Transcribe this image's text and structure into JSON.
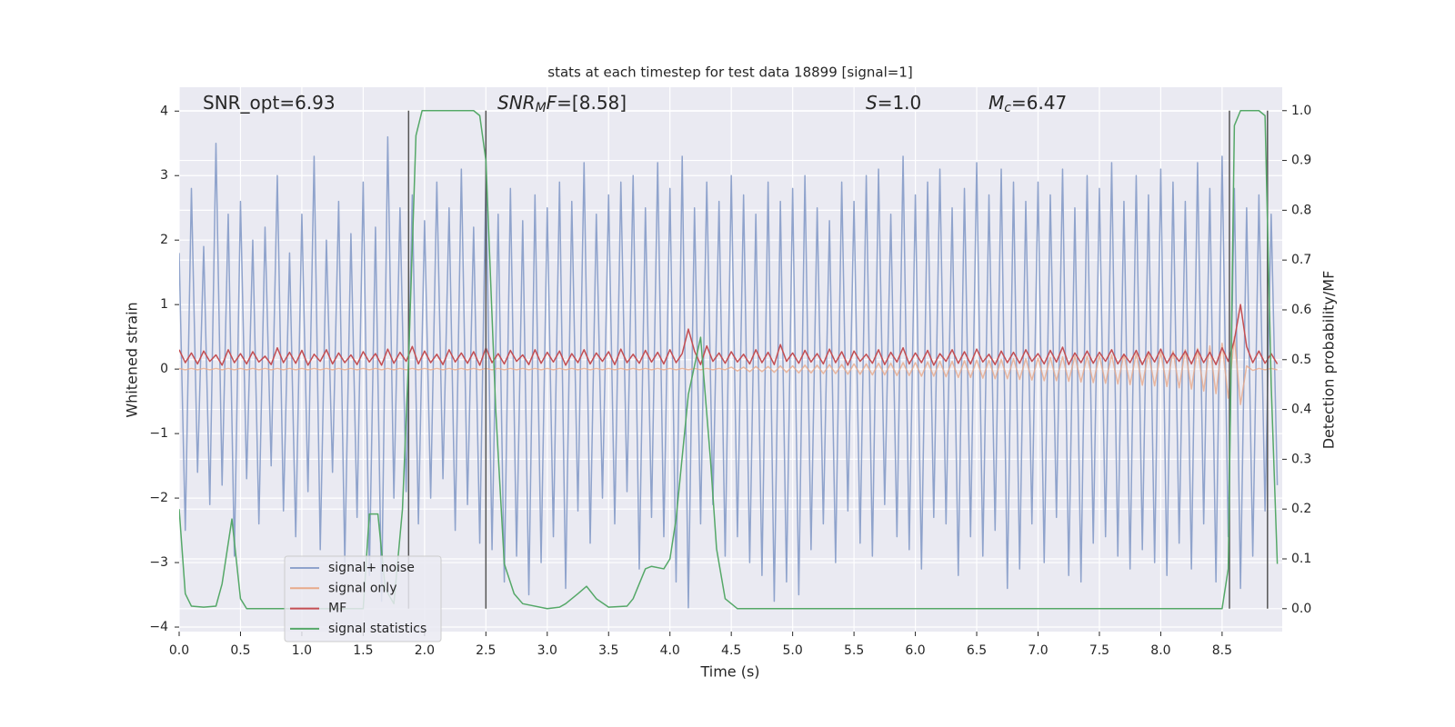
{
  "chart_data": {
    "type": "line",
    "title": "stats at each timestep for test data 18899 [signal=1]",
    "xlabel": "Time (s)",
    "ylabel": "Whitened strain",
    "y2label": "Detection probability/MF",
    "annotations": [
      {
        "parts": [
          {
            "text": "SNR_opt=6.93"
          }
        ]
      },
      {
        "parts": [
          {
            "text": "SNR",
            "italic": true
          },
          {
            "text": "M",
            "italic": true,
            "sub": true
          },
          {
            "text": "F",
            "italic": true
          },
          {
            "text": "=[8.58]"
          }
        ]
      },
      {
        "parts": [
          {
            "text": "S",
            "italic": true
          },
          {
            "text": "=1.0"
          }
        ]
      },
      {
        "parts": [
          {
            "text": "M",
            "italic": true
          },
          {
            "text": "c",
            "italic": true,
            "sub": true
          },
          {
            "text": "=6.47"
          }
        ]
      }
    ],
    "xlim": [
      0,
      8.99
    ],
    "ylim": [
      -4.07,
      4.37
    ],
    "y2lim": [
      -0.046,
      1.047
    ],
    "xticks": [
      {
        "value": 0,
        "label": "0.0"
      },
      {
        "value": 0.5,
        "label": "0.5"
      },
      {
        "value": 1,
        "label": "1.0"
      },
      {
        "value": 1.5,
        "label": "1.5"
      },
      {
        "value": 2,
        "label": "2.0"
      },
      {
        "value": 2.5,
        "label": "2.5"
      },
      {
        "value": 3,
        "label": "3.0"
      },
      {
        "value": 3.5,
        "label": "3.5"
      },
      {
        "value": 4,
        "label": "4.0"
      },
      {
        "value": 4.5,
        "label": "4.5"
      },
      {
        "value": 5,
        "label": "5.0"
      },
      {
        "value": 5.5,
        "label": "5.5"
      },
      {
        "value": 6,
        "label": "6.0"
      },
      {
        "value": 6.5,
        "label": "6.5"
      },
      {
        "value": 7,
        "label": "7.0"
      },
      {
        "value": 7.5,
        "label": "7.5"
      },
      {
        "value": 8,
        "label": "8.0"
      },
      {
        "value": 8.5,
        "label": "8.5"
      }
    ],
    "yticks": [
      {
        "value": -4,
        "label": "−4"
      },
      {
        "value": -3,
        "label": "−3"
      },
      {
        "value": -2,
        "label": "−2"
      },
      {
        "value": -1,
        "label": "−1"
      },
      0,
      1,
      2,
      3,
      4
    ],
    "y2ticks": [
      {
        "value": 0,
        "label": "0.0"
      },
      {
        "value": 0.1,
        "label": "0.1"
      },
      {
        "value": 0.2,
        "label": "0.2"
      },
      {
        "value": 0.3,
        "label": "0.3"
      },
      {
        "value": 0.4,
        "label": "0.4"
      },
      {
        "value": 0.5,
        "label": "0.5"
      },
      {
        "value": 0.6,
        "label": "0.6"
      },
      {
        "value": 0.7,
        "label": "0.7"
      },
      {
        "value": 0.8,
        "label": "0.8"
      },
      {
        "value": 0.9,
        "label": "0.9"
      },
      {
        "value": 1,
        "label": "1.0"
      }
    ],
    "grid": true,
    "legend": "lower left",
    "vlines": [
      1.87,
      2.5,
      8.56,
      8.87
    ],
    "vline_color": "#555555",
    "x": [
      0,
      0.05,
      0.1,
      0.15,
      0.2,
      0.25,
      0.3,
      0.35,
      0.4,
      0.45,
      0.5,
      0.55,
      0.6,
      0.65,
      0.7,
      0.75,
      0.8,
      0.85,
      0.9,
      0.95,
      1,
      1.05,
      1.1,
      1.15,
      1.2,
      1.25,
      1.3,
      1.35,
      1.4,
      1.45,
      1.5,
      1.55,
      1.6,
      1.65,
      1.7,
      1.75,
      1.8,
      1.85,
      1.9,
      1.95,
      2,
      2.05,
      2.1,
      2.15,
      2.2,
      2.25,
      2.3,
      2.35,
      2.4,
      2.45,
      2.5,
      2.55,
      2.6,
      2.65,
      2.7,
      2.75,
      2.8,
      2.85,
      2.9,
      2.95,
      3,
      3.05,
      3.1,
      3.15,
      3.2,
      3.25,
      3.3,
      3.35,
      3.4,
      3.45,
      3.5,
      3.55,
      3.6,
      3.65,
      3.7,
      3.75,
      3.8,
      3.85,
      3.9,
      3.95,
      4,
      4.05,
      4.1,
      4.15,
      4.2,
      4.25,
      4.3,
      4.35,
      4.4,
      4.45,
      4.5,
      4.55,
      4.6,
      4.65,
      4.7,
      4.75,
      4.8,
      4.85,
      4.9,
      4.95,
      5,
      5.05,
      5.1,
      5.15,
      5.2,
      5.25,
      5.3,
      5.35,
      5.4,
      5.45,
      5.5,
      5.55,
      5.6,
      5.65,
      5.7,
      5.75,
      5.8,
      5.85,
      5.9,
      5.95,
      6,
      6.05,
      6.1,
      6.15,
      6.2,
      6.25,
      6.3,
      6.35,
      6.4,
      6.45,
      6.5,
      6.55,
      6.6,
      6.65,
      6.7,
      6.75,
      6.8,
      6.85,
      6.9,
      6.95,
      7,
      7.05,
      7.1,
      7.15,
      7.2,
      7.25,
      7.3,
      7.35,
      7.4,
      7.45,
      7.5,
      7.55,
      7.6,
      7.65,
      7.7,
      7.75,
      7.8,
      7.85,
      7.9,
      7.95,
      8,
      8.05,
      8.1,
      8.15,
      8.2,
      8.25,
      8.3,
      8.35,
      8.4,
      8.45,
      8.5,
      8.55,
      8.6,
      8.65,
      8.7,
      8.75,
      8.8,
      8.85,
      8.9,
      8.95
    ],
    "series": [
      {
        "name": "signal+ noise",
        "color": "#8fa3cc",
        "values": [
          1.8,
          -2.5,
          2.8,
          -1.6,
          1.9,
          -2.1,
          3.5,
          -1.8,
          2.4,
          -2.9,
          2.6,
          -1.7,
          2.0,
          -2.4,
          2.2,
          -1.5,
          3.0,
          -2.2,
          1.8,
          -2.6,
          2.4,
          -1.9,
          3.3,
          -2.8,
          2.0,
          -1.6,
          2.6,
          -3.0,
          2.1,
          -2.3,
          2.9,
          -3.2,
          2.2,
          -3.6,
          3.6,
          -2.0,
          2.5,
          -1.9,
          2.7,
          -2.4,
          2.3,
          -2.0,
          2.9,
          -1.7,
          2.5,
          -2.5,
          3.1,
          -2.1,
          2.2,
          -2.7,
          3.0,
          -2.8,
          2.4,
          -3.3,
          2.8,
          -2.9,
          2.3,
          -3.5,
          2.7,
          -3.0,
          2.5,
          -2.6,
          2.9,
          -3.4,
          2.6,
          -2.2,
          3.2,
          -2.7,
          2.4,
          -2.0,
          2.7,
          -2.4,
          2.9,
          -1.9,
          3.0,
          -3.1,
          2.5,
          -2.3,
          3.2,
          -2.6,
          2.8,
          -3.3,
          3.3,
          -3.7,
          2.5,
          -2.4,
          2.9,
          -2.1,
          2.6,
          -2.9,
          3.0,
          -2.6,
          2.7,
          -3.0,
          2.4,
          -3.2,
          2.9,
          -3.6,
          2.6,
          -3.3,
          2.8,
          -3.5,
          3.0,
          -2.8,
          2.5,
          -2.4,
          2.3,
          -3.0,
          2.9,
          -2.2,
          2.6,
          -2.7,
          3.0,
          -2.9,
          3.1,
          -2.1,
          2.4,
          -2.6,
          3.3,
          -2.8,
          2.7,
          -3.1,
          2.9,
          -2.3,
          3.1,
          -2.4,
          2.5,
          -3.2,
          2.8,
          -2.6,
          3.2,
          -2.9,
          2.7,
          -2.5,
          3.1,
          -3.4,
          2.9,
          -3.1,
          2.6,
          -2.4,
          2.9,
          -3.0,
          2.7,
          -2.3,
          3.1,
          -3.2,
          2.5,
          -3.3,
          3.0,
          -2.7,
          2.8,
          -2.6,
          3.2,
          -2.9,
          2.6,
          -3.1,
          3.0,
          -2.8,
          2.7,
          -3.0,
          3.1,
          -3.2,
          2.9,
          -2.7,
          2.6,
          -3.1,
          3.2,
          -2.4,
          2.8,
          -3.3,
          3.3,
          -2.6,
          2.8,
          -3.4,
          2.5,
          -2.9,
          2.7,
          -2.2,
          2.4,
          -1.8
        ]
      },
      {
        "name": "signal only",
        "color": "#e8a98a",
        "values": [
          0.01,
          -0.01,
          0.01,
          -0.01,
          0.01,
          -0.01,
          0.01,
          -0.01,
          0.01,
          -0.01,
          0.01,
          -0.01,
          0.01,
          -0.01,
          0.01,
          -0.01,
          0.01,
          -0.01,
          0.01,
          -0.01,
          0.01,
          -0.01,
          0.01,
          -0.01,
          0.01,
          -0.01,
          0.01,
          -0.01,
          0.01,
          -0.01,
          0.01,
          -0.01,
          0.01,
          -0.01,
          0.01,
          -0.01,
          0.01,
          -0.01,
          0.01,
          -0.01,
          0.01,
          -0.01,
          0.01,
          -0.01,
          0.01,
          -0.01,
          0.01,
          -0.01,
          0.01,
          -0.01,
          0.01,
          -0.01,
          0.01,
          -0.01,
          0.01,
          -0.01,
          0.01,
          -0.01,
          0.01,
          -0.01,
          0.01,
          -0.01,
          0.01,
          -0.01,
          0.01,
          -0.01,
          0.01,
          -0.01,
          0.01,
          -0.01,
          0.01,
          -0.01,
          0.01,
          -0.01,
          0.01,
          -0.01,
          0.01,
          -0.01,
          0.01,
          -0.01,
          0.01,
          -0.01,
          0.01,
          -0.01,
          0.01,
          -0.01,
          0.01,
          -0.01,
          0.01,
          -0.01,
          0.03,
          -0.03,
          0.03,
          -0.04,
          0.04,
          -0.04,
          0.04,
          -0.05,
          0.05,
          -0.05,
          0.05,
          -0.06,
          0.06,
          -0.06,
          0.06,
          -0.07,
          0.07,
          -0.07,
          0.07,
          -0.08,
          0.08,
          -0.08,
          0.08,
          -0.09,
          0.09,
          -0.09,
          0.09,
          -0.1,
          0.1,
          -0.1,
          0.1,
          -0.11,
          0.11,
          -0.11,
          0.12,
          -0.12,
          0.12,
          -0.13,
          0.13,
          -0.13,
          0.14,
          -0.14,
          0.14,
          -0.15,
          0.15,
          -0.15,
          0.16,
          -0.16,
          0.16,
          -0.17,
          0.17,
          -0.18,
          0.18,
          -0.18,
          0.19,
          -0.19,
          0.2,
          -0.2,
          0.2,
          -0.21,
          0.21,
          -0.22,
          0.22,
          -0.23,
          0.23,
          -0.24,
          0.24,
          -0.25,
          0.25,
          -0.26,
          0.26,
          -0.27,
          0.28,
          -0.29,
          0.3,
          -0.31,
          0.32,
          -0.34,
          0.36,
          -0.38,
          0.4,
          -0.45,
          0.5,
          -0.55,
          0.05,
          -0.02,
          0.01,
          -0.01,
          0.01,
          -0.01
        ]
      },
      {
        "name": "MF",
        "color": "#c44e52",
        "values": [
          0.3,
          0.1,
          0.25,
          0.08,
          0.28,
          0.12,
          0.22,
          0.06,
          0.3,
          0.1,
          0.24,
          0.08,
          0.27,
          0.11,
          0.2,
          0.07,
          0.33,
          0.1,
          0.26,
          0.09,
          0.29,
          0.06,
          0.23,
          0.12,
          0.3,
          0.08,
          0.25,
          0.1,
          0.22,
          0.07,
          0.27,
          0.11,
          0.24,
          0.06,
          0.31,
          0.09,
          0.26,
          0.12,
          0.35,
          0.08,
          0.28,
          0.1,
          0.23,
          0.07,
          0.3,
          0.11,
          0.25,
          0.09,
          0.27,
          0.06,
          0.33,
          0.1,
          0.24,
          0.08,
          0.29,
          0.12,
          0.22,
          0.07,
          0.3,
          0.09,
          0.26,
          0.11,
          0.28,
          0.06,
          0.24,
          0.1,
          0.3,
          0.08,
          0.25,
          0.12,
          0.27,
          0.07,
          0.31,
          0.1,
          0.23,
          0.09,
          0.29,
          0.11,
          0.26,
          0.08,
          0.3,
          0.1,
          0.24,
          0.62,
          0.28,
          0.07,
          0.36,
          0.12,
          0.25,
          0.09,
          0.27,
          0.11,
          0.23,
          0.08,
          0.3,
          0.1,
          0.26,
          0.07,
          0.38,
          0.12,
          0.25,
          0.09,
          0.29,
          0.11,
          0.24,
          0.08,
          0.31,
          0.1,
          0.27,
          0.06,
          0.28,
          0.12,
          0.23,
          0.09,
          0.3,
          0.07,
          0.26,
          0.11,
          0.33,
          0.08,
          0.25,
          0.1,
          0.29,
          0.06,
          0.24,
          0.12,
          0.3,
          0.09,
          0.27,
          0.08,
          0.31,
          0.11,
          0.23,
          0.07,
          0.28,
          0.1,
          0.26,
          0.09,
          0.3,
          0.12,
          0.24,
          0.08,
          0.29,
          0.11,
          0.34,
          0.07,
          0.25,
          0.1,
          0.28,
          0.09,
          0.26,
          0.12,
          0.3,
          0.08,
          0.23,
          0.1,
          0.29,
          0.07,
          0.27,
          0.11,
          0.31,
          0.09,
          0.25,
          0.12,
          0.28,
          0.08,
          0.3,
          0.1,
          0.26,
          0.07,
          0.33,
          0.12,
          0.45,
          1.0,
          0.35,
          0.1,
          0.28,
          0.09,
          0.24,
          0.08
        ]
      },
      {
        "name": "signal statistics",
        "color": "#55a868",
        "axis": "y2",
        "x": [
          0,
          0.05,
          0.1,
          0.2,
          0.3,
          0.35,
          0.43,
          0.5,
          0.55,
          1.5,
          1.55,
          1.62,
          1.68,
          1.75,
          1.82,
          1.87,
          1.93,
          1.98,
          2.4,
          2.45,
          2.5,
          2.58,
          2.65,
          2.73,
          2.8,
          3.0,
          3.1,
          3.15,
          3.25,
          3.32,
          3.4,
          3.5,
          3.65,
          3.7,
          3.8,
          3.85,
          3.95,
          4.0,
          4.05,
          4.15,
          4.25,
          4.33,
          4.38,
          4.45,
          4.55,
          8.5,
          8.55,
          8.6,
          8.65,
          8.8,
          8.85,
          8.9,
          8.95
        ],
        "values": [
          0.2,
          0.03,
          0.005,
          0.003,
          0.005,
          0.05,
          0.18,
          0.02,
          0.0,
          0.0,
          0.19,
          0.19,
          0.04,
          0.01,
          0.2,
          0.5,
          0.95,
          1.0,
          1.0,
          0.99,
          0.9,
          0.4,
          0.09,
          0.03,
          0.01,
          0.0,
          0.003,
          0.01,
          0.03,
          0.045,
          0.02,
          0.003,
          0.005,
          0.02,
          0.08,
          0.085,
          0.08,
          0.1,
          0.18,
          0.43,
          0.545,
          0.3,
          0.12,
          0.02,
          0.0,
          0.0,
          0.08,
          0.97,
          1.0,
          1.0,
          0.99,
          0.45,
          0.09
        ]
      }
    ]
  }
}
